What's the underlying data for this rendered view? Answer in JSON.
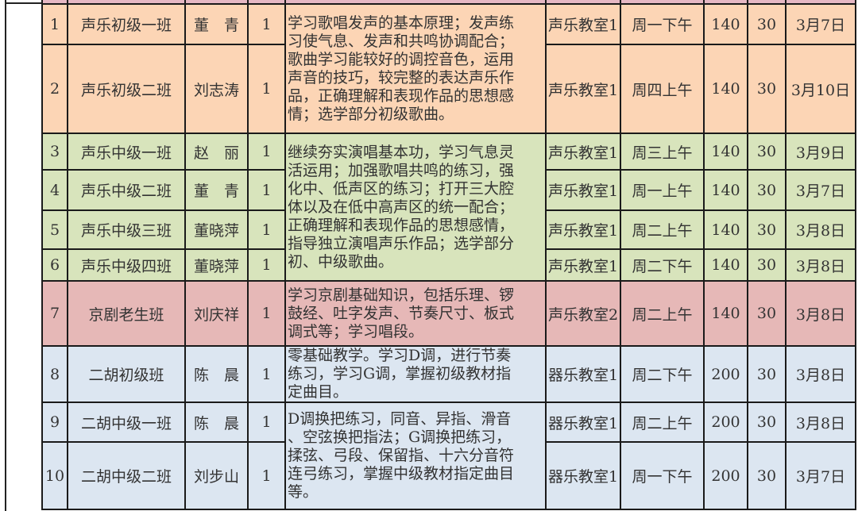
{
  "colors": {
    "beginner_vocal": "#fcd5b5",
    "intermediate_vocal": "#d8e4bc",
    "opera": "#e6b8b7",
    "erhu": "#dce6f1",
    "header": "#e6b8c4"
  },
  "groups": [
    {
      "color": "#fcd5b5",
      "description": "学习歌唱发声的基本原理；发声练\n习使气息、发声和共鸣协调配合；\n歌曲学习能较好的调控音色，运用\n声音的技巧，较完整的表达声乐作\n品，正确理解和表现作品的思想感\n情；选学部分初级歌曲。",
      "rows": [
        {
          "no": "1",
          "class": "声乐初级一班",
          "teacher": "董　青",
          "count": "1",
          "room": "声乐教室1",
          "time": "周一下午",
          "fee": "140",
          "quota": "30",
          "start": "3月7日"
        },
        {
          "no": "2",
          "class": "声乐初级二班",
          "teacher": "刘志涛",
          "count": "1",
          "room": "声乐教室1",
          "time": "周四上午",
          "fee": "140",
          "quota": "30",
          "start": "3月10日"
        }
      ]
    },
    {
      "color": "#d8e4bc",
      "description": "继续夯实演唱基本功，学习气息灵\n活运用；加强歌唱共鸣的练习，强\n化中、低声区的练习；打开三大腔\n体以及在低中高声区的统一配合；\n正确理解和表现作品的思想感情，\n指导独立演唱声乐作品；选学部分\n初、中级歌曲。",
      "rows": [
        {
          "no": "3",
          "class": "声乐中级一班",
          "teacher": "赵　丽",
          "count": "1",
          "room": "声乐教室1",
          "time": "周三上午",
          "fee": "140",
          "quota": "30",
          "start": "3月9日"
        },
        {
          "no": "4",
          "class": "声乐中级二班",
          "teacher": "董　青",
          "count": "1",
          "room": "声乐教室1",
          "time": "周一上午",
          "fee": "140",
          "quota": "30",
          "start": "3月7日"
        },
        {
          "no": "5",
          "class": "声乐中级三班",
          "teacher": "董晓萍",
          "count": "1",
          "room": "声乐教室1",
          "time": "周二上午",
          "fee": "140",
          "quota": "30",
          "start": "3月8日"
        },
        {
          "no": "6",
          "class": "声乐中级四班",
          "teacher": "董晓萍",
          "count": "1",
          "room": "声乐教室1",
          "time": "周二下午",
          "fee": "140",
          "quota": "30",
          "start": "3月8日"
        }
      ]
    },
    {
      "color": "#e6b8b7",
      "description": "学习京剧基础知识，包括乐理、锣\n鼓经、吐字发声、节奏尺寸、板式\n调式等；学习唱段。",
      "rows": [
        {
          "no": "7",
          "class": "京剧老生班",
          "teacher": "刘庆祥",
          "count": "1",
          "room": "声乐教室2",
          "time": "周二上午",
          "fee": "140",
          "quota": "30",
          "start": "3月8日"
        }
      ]
    },
    {
      "color": "#dce6f1",
      "description": "零基础教学。学习D调，进行节奏\n练习，学习G调，掌握初级教材指\n定曲目。",
      "rows": [
        {
          "no": "8",
          "class": "二胡初级班",
          "teacher": "陈　晨",
          "count": "1",
          "room": "器乐教室1",
          "time": "周二下午",
          "fee": "200",
          "quota": "30",
          "start": "3月8日"
        }
      ]
    },
    {
      "color": "#dce6f1",
      "description": "D调换把练习，同音、异指、滑音\n、空弦换把指法；G调换把练习，\n揉弦、弓段、保留指、十六分音符\n连弓练习，掌握中级教材指定曲目\n等。",
      "rows": [
        {
          "no": "9",
          "class": "二胡中级一班",
          "teacher": "陈　晨",
          "count": "1",
          "room": "器乐教室1",
          "time": "周二上午",
          "fee": "200",
          "quota": "30",
          "start": "3月8日"
        },
        {
          "no": "10",
          "class": "二胡中级二班",
          "teacher": "刘步山",
          "count": "1",
          "room": "器乐教室1",
          "time": "周一下午",
          "fee": "200",
          "quota": "30",
          "start": "3月7日"
        }
      ]
    }
  ]
}
